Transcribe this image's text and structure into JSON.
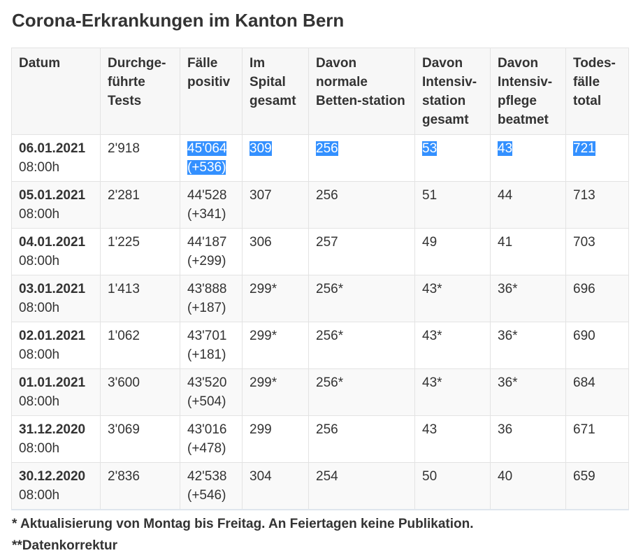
{
  "header": {
    "title": "Corona-Erkrankungen im Kanton Bern"
  },
  "table": {
    "columns": [
      "Datum",
      "Durchge-führte Tests",
      "Fälle positiv",
      "Im Spital gesamt",
      "Davon normale Betten-station",
      "Davon Intensiv-station gesamt",
      "Davon Intensiv-pflege beatmet",
      "Todes-fälle total"
    ],
    "rows": [
      [
        "06.01.2021",
        "08:00h",
        "2'918",
        "45'064",
        "(+536)",
        "309",
        "256",
        "53",
        "43",
        "721"
      ],
      [
        "05.01.2021",
        "08:00h",
        "2'281",
        "44'528",
        "(+341)",
        "307",
        "256",
        "51",
        "44",
        "713"
      ],
      [
        "04.01.2021",
        "08:00h",
        "1'225",
        "44'187",
        "(+299)",
        "306",
        "257",
        "49",
        "41",
        "703"
      ],
      [
        "03.01.2021",
        "08:00h",
        "1'413",
        "43'888",
        "(+187)",
        "299*",
        "256*",
        "43*",
        "36*",
        "696"
      ],
      [
        "02.01.2021",
        "08:00h",
        "1'062",
        "43'701",
        "(+181)",
        "299*",
        "256*",
        "43*",
        "36*",
        "690"
      ],
      [
        "01.01.2021",
        "08:00h",
        "3'600",
        "43'520",
        "(+504)",
        "299*",
        "256*",
        "43*",
        "36*",
        "684"
      ],
      [
        "31.12.2020",
        "08:00h",
        "3'069",
        "43'016",
        "(+478)",
        "299",
        "256",
        "43",
        "36",
        "671"
      ],
      [
        "30.12.2020",
        "08:00h",
        "2'836",
        "42'538",
        "(+546)",
        "304",
        "254",
        "50",
        "40",
        "659"
      ]
    ]
  },
  "footnotes": [
    "* Aktualisierung von Montag bis Freitag. An Feiertagen keine Publikation.",
    "**Datenkorrektur"
  ]
}
